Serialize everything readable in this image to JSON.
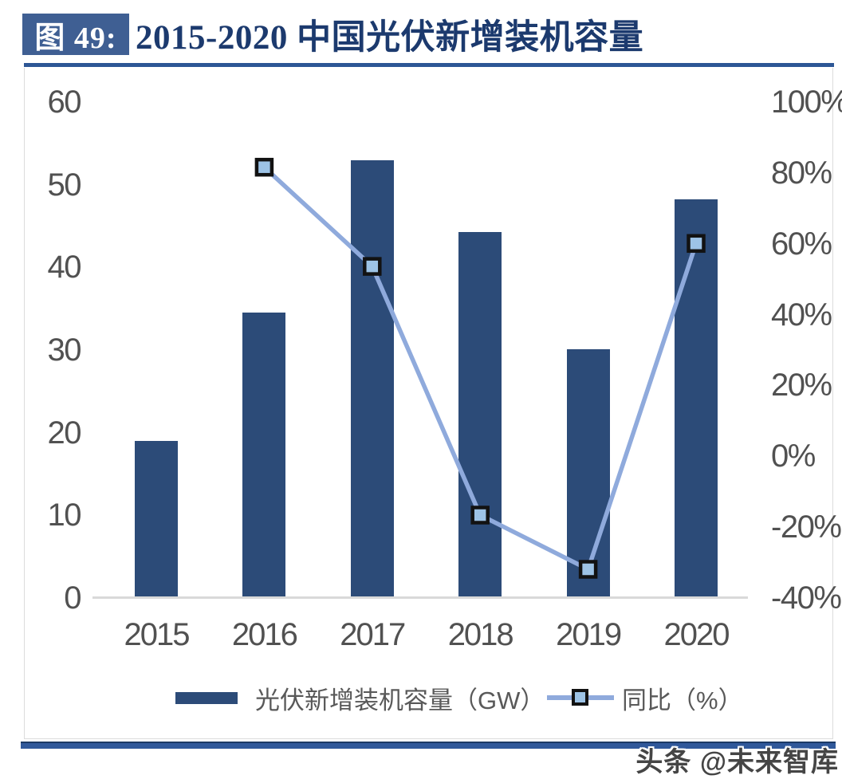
{
  "figure": {
    "label": "图 49:",
    "title": "2015-2020 中国光伏新增装机容量"
  },
  "watermark": "头条 @未来智库",
  "colors": {
    "bar": "#2c4b78",
    "line": "#8faadc",
    "marker_fill": "#9dc3e6",
    "marker_border": "#121212",
    "title_text": "#1c3a6e",
    "title_box_bg": "#3f5f93",
    "rule_blue": "#2d5795",
    "axis_text": "#515151",
    "axis_line": "#d9d9d9",
    "legend_text": "#595959"
  },
  "chart_data": {
    "type": "bar+line",
    "title": "2015-2020 中国光伏新增装机容量",
    "categories": [
      "2015",
      "2016",
      "2017",
      "2018",
      "2019",
      "2020"
    ],
    "series": [
      {
        "name": "光伏新增装机容量（GW）",
        "type": "bar",
        "axis": "left",
        "values": [
          19.0,
          34.5,
          53.0,
          44.3,
          30.1,
          48.2
        ]
      },
      {
        "name": "同比（%）",
        "type": "line",
        "axis": "right",
        "values": [
          null,
          81.6,
          53.6,
          -16.6,
          -31.9,
          60.1
        ]
      }
    ],
    "left_axis": {
      "min": 0,
      "max": 60,
      "step": 10,
      "ticks": [
        "60",
        "50",
        "40",
        "30",
        "20",
        "10",
        "0"
      ]
    },
    "right_axis": {
      "min": -40,
      "max": 100,
      "step": 20,
      "ticks": [
        "100%",
        "80%",
        "60%",
        "40%",
        "20%",
        "0%",
        "-20%",
        "-40%"
      ]
    },
    "legend": [
      {
        "label": "光伏新增装机容量（GW）",
        "swatch": "bar"
      },
      {
        "label": "同比（%）",
        "swatch": "line-marker"
      }
    ],
    "grid": false,
    "legend_position": "bottom"
  }
}
